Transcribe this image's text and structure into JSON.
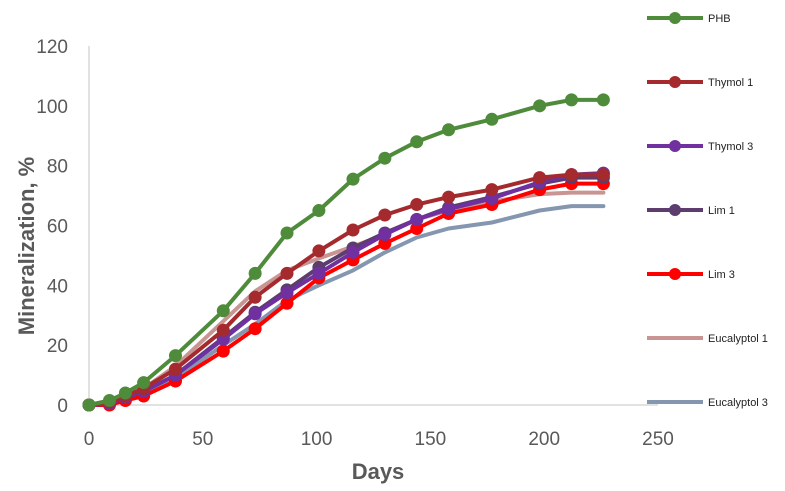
{
  "chart_data": {
    "type": "line",
    "title": "",
    "xlabel": "Days",
    "ylabel": "Mineralization, %",
    "xlim": [
      0,
      250
    ],
    "ylim": [
      0,
      120
    ],
    "xticks": [
      0,
      50,
      100,
      150,
      200,
      250
    ],
    "yticks": [
      0,
      20,
      40,
      60,
      80,
      100,
      120
    ],
    "grid": false,
    "legend_position": "right",
    "x": [
      0,
      9,
      16,
      24,
      38,
      59,
      73,
      87,
      101,
      116,
      130,
      144,
      158,
      177,
      198,
      212,
      226
    ],
    "series": [
      {
        "name": "PHB",
        "color": "#4e8b3a",
        "marker": "circle",
        "values": [
          0,
          1.5,
          4,
          7.5,
          16.5,
          31.5,
          44,
          57.5,
          65,
          75.5,
          82.5,
          88,
          92,
          95.5,
          100,
          102,
          102
        ]
      },
      {
        "name": "Thymol 1",
        "color": "#a52a2e",
        "marker": "circle",
        "values": [
          0,
          1,
          3,
          5.5,
          12,
          25,
          36,
          44,
          51.5,
          58.5,
          63.5,
          67,
          69.5,
          72,
          76,
          77,
          77
        ]
      },
      {
        "name": "Thymol 3",
        "color": "#7030a0",
        "marker": "circle",
        "values": [
          0,
          0.5,
          2.5,
          4.5,
          10,
          22,
          30.5,
          37.5,
          44,
          51,
          57,
          62,
          65.5,
          69,
          74.5,
          77,
          77.5
        ]
      },
      {
        "name": "Lim 1",
        "color": "#5c3d6e",
        "marker": "circle",
        "values": [
          0,
          0.5,
          2.5,
          4.5,
          10,
          22.5,
          31,
          38.5,
          46,
          52.5,
          57.5,
          62,
          66,
          69.5,
          74,
          76,
          76
        ]
      },
      {
        "name": "Lim 3",
        "color": "#ff0000",
        "marker": "circle",
        "values": [
          0,
          0,
          1.5,
          3,
          8,
          18,
          25.5,
          34,
          42.5,
          48.5,
          54,
          59,
          64,
          67,
          72,
          74,
          74
        ]
      },
      {
        "name": "Eucalyptol 1",
        "color": "#c89593",
        "marker": "none",
        "values": [
          0,
          1,
          3,
          5.5,
          13,
          28,
          38,
          45,
          49,
          53,
          57,
          62,
          65,
          68,
          70.5,
          71,
          71
        ]
      },
      {
        "name": "Eucalyptol 3",
        "color": "#8496b0",
        "marker": "none",
        "values": [
          0,
          0.5,
          2,
          4,
          9,
          20,
          27,
          35,
          40,
          45,
          51,
          56,
          59,
          61,
          65,
          66.5,
          66.5
        ]
      }
    ]
  }
}
